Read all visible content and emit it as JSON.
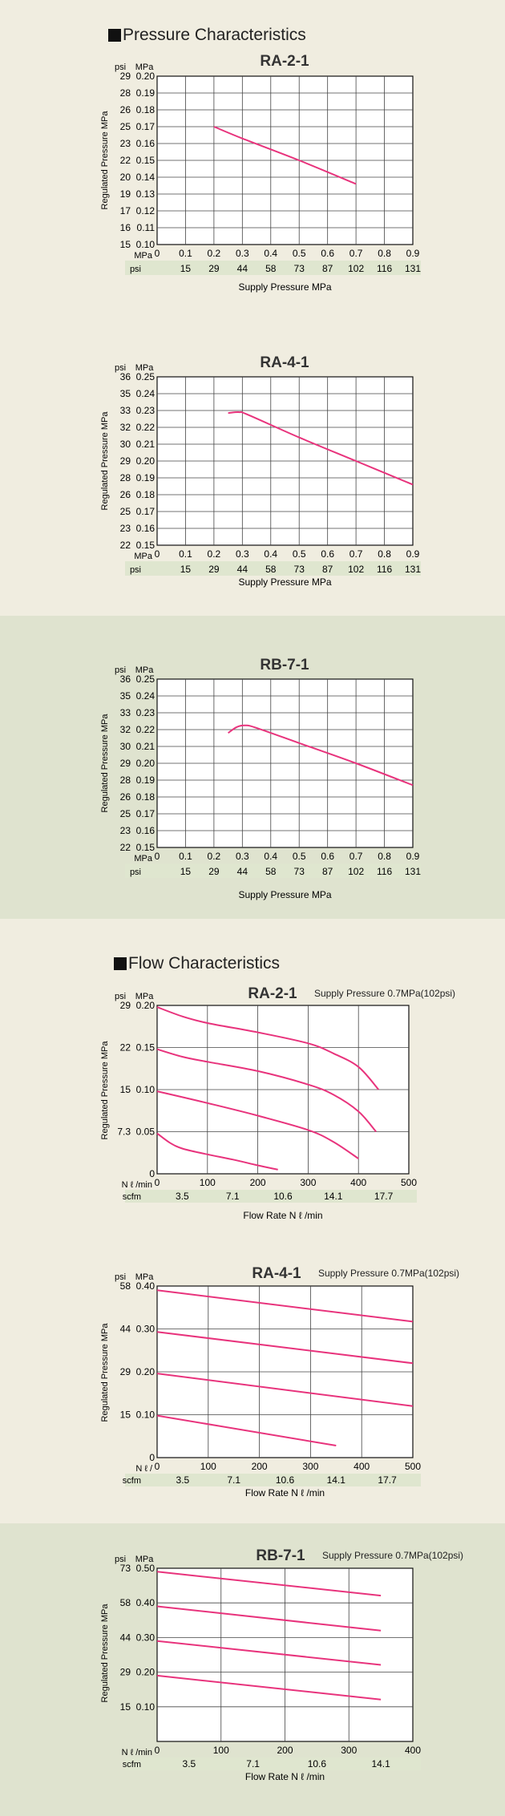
{
  "colors": {
    "background": "#f0ede0",
    "band": "#dfe3cf",
    "curve": "#e8337c",
    "unit_row": "#dfe6cf"
  },
  "sections": {
    "pressure_title": "Pressure Characteristics",
    "flow_title": "Flow Characteristics"
  },
  "chart_data": [
    {
      "type": "line",
      "title": "RA-2-1",
      "psi_label": "psi",
      "mpa_label": "MPa",
      "ylabel": "Regulated Pressure MPa",
      "xlabel": "Supply Pressure MPa",
      "y_mpa_ticks": [
        "0.20",
        "0.19",
        "0.18",
        "0.17",
        "0.16",
        "0.15",
        "0.14",
        "0.13",
        "0.12",
        "0.11",
        "0.10"
      ],
      "y_psi_ticks": [
        "29",
        "28",
        "26",
        "25",
        "23",
        "22",
        "20",
        "19",
        "17",
        "16",
        "15"
      ],
      "ylim": [
        0.1,
        0.2
      ],
      "x_unit_label": "MPa",
      "x_ticks": [
        "0",
        "0.1",
        "0.2",
        "0.3",
        "0.4",
        "0.5",
        "0.6",
        "0.7",
        "0.8",
        "0.9"
      ],
      "xlim": [
        0,
        0.9
      ],
      "sub_unit_label": "psi",
      "sub_ticks": [
        "15",
        "29",
        "44",
        "58",
        "73",
        "87",
        "102",
        "116",
        "131"
      ],
      "series": [
        {
          "x": [
            0.2,
            0.3,
            0.5,
            0.7
          ],
          "y": [
            0.17,
            0.163,
            0.15,
            0.136
          ]
        }
      ]
    },
    {
      "type": "line",
      "title": "RA-4-1",
      "psi_label": "psi",
      "mpa_label": "MPa",
      "ylabel": "Regulated Pressure MPa",
      "xlabel": "Supply Pressure MPa",
      "y_mpa_ticks": [
        "0.25",
        "0.24",
        "0.23",
        "0.22",
        "0.21",
        "0.20",
        "0.19",
        "0.18",
        "0.17",
        "0.16",
        "0.15"
      ],
      "y_psi_ticks": [
        "36",
        "35",
        "33",
        "32",
        "30",
        "29",
        "28",
        "26",
        "25",
        "23",
        "22"
      ],
      "ylim": [
        0.15,
        0.25
      ],
      "x_unit_label": "MPa",
      "x_ticks": [
        "0",
        "0.1",
        "0.2",
        "0.3",
        "0.4",
        "0.5",
        "0.6",
        "0.7",
        "0.8",
        "0.9"
      ],
      "xlim": [
        0,
        0.9
      ],
      "sub_unit_label": "psi",
      "sub_ticks": [
        "15",
        "29",
        "44",
        "58",
        "73",
        "87",
        "102",
        "116",
        "131"
      ],
      "series": [
        {
          "x": [
            0.25,
            0.29,
            0.32,
            0.5,
            0.7,
            0.9
          ],
          "y": [
            0.2285,
            0.229,
            0.2275,
            0.214,
            0.2,
            0.186
          ]
        }
      ]
    },
    {
      "type": "line",
      "title": "RB-7-1",
      "psi_label": "psi",
      "mpa_label": "MPa",
      "ylabel": "Regulated Pressure MPa",
      "xlabel": "Supply Pressure MPa",
      "y_mpa_ticks": [
        "0.25",
        "0.24",
        "0.23",
        "0.22",
        "0.21",
        "0.20",
        "0.19",
        "0.18",
        "0.17",
        "0.16",
        "0.15"
      ],
      "y_psi_ticks": [
        "36",
        "35",
        "33",
        "32",
        "30",
        "29",
        "28",
        "26",
        "25",
        "23",
        "22"
      ],
      "ylim": [
        0.15,
        0.25
      ],
      "x_unit_label": "MPa",
      "x_ticks": [
        "0",
        "0.1",
        "0.2",
        "0.3",
        "0.4",
        "0.5",
        "0.6",
        "0.7",
        "0.8",
        "0.9"
      ],
      "xlim": [
        0,
        0.9
      ],
      "sub_unit_label": "psi",
      "sub_ticks": [
        "15",
        "29",
        "44",
        "58",
        "73",
        "87",
        "102",
        "116",
        "131"
      ],
      "series": [
        {
          "x": [
            0.25,
            0.28,
            0.31,
            0.35,
            0.5,
            0.7,
            0.9
          ],
          "y": [
            0.218,
            0.2215,
            0.2225,
            0.221,
            0.212,
            0.2,
            0.187
          ]
        }
      ]
    },
    {
      "type": "line",
      "title": "RA-2-1",
      "annotation": "Supply Pressure 0.7MPa(102psi)",
      "psi_label": "psi",
      "mpa_label": "MPa",
      "ylabel": "Regulated Pressure MPa",
      "xlabel": "Flow  Rate N ℓ /min",
      "y_mpa_ticks": [
        "0.20",
        "0.15",
        "0.10",
        "0.05",
        "0"
      ],
      "y_psi_ticks": [
        "29",
        "22",
        "15",
        "7.3",
        ""
      ],
      "ylim": [
        0,
        0.2
      ],
      "x_unit_label": "N ℓ /min",
      "x_ticks": [
        "0",
        "100",
        "200",
        "300",
        "400",
        "500"
      ],
      "xlim": [
        0,
        500
      ],
      "sub_unit_label": "scfm",
      "sub_ticks": [
        "3.5",
        "7.1",
        "10.6",
        "14.1",
        "17.7"
      ],
      "series": [
        {
          "x": [
            0,
            50,
            100,
            200,
            300,
            350,
            400,
            440
          ],
          "y": [
            0.198,
            0.187,
            0.179,
            0.168,
            0.155,
            0.143,
            0.127,
            0.1
          ]
        },
        {
          "x": [
            0,
            50,
            100,
            200,
            300,
            350,
            400,
            435
          ],
          "y": [
            0.148,
            0.139,
            0.133,
            0.122,
            0.106,
            0.094,
            0.074,
            0.05
          ]
        },
        {
          "x": [
            0,
            100,
            200,
            300,
            350,
            400
          ],
          "y": [
            0.098,
            0.084,
            0.069,
            0.052,
            0.038,
            0.018
          ]
        },
        {
          "x": [
            0,
            25,
            50,
            100,
            150,
            200,
            240
          ],
          "y": [
            0.048,
            0.037,
            0.03,
            0.023,
            0.017,
            0.01,
            0.005
          ]
        }
      ]
    },
    {
      "type": "line",
      "title": "RA-4-1",
      "annotation": "Supply Pressure 0.7MPa(102psi)",
      "psi_label": "psi",
      "mpa_label": "MPa",
      "ylabel": "Regulated Pressure MPa",
      "xlabel": "Flow  Rate N ℓ /min",
      "y_mpa_ticks": [
        "0.40",
        "0.30",
        "0.20",
        "0.10",
        "0"
      ],
      "y_psi_ticks": [
        "58",
        "44",
        "29",
        "15",
        ""
      ],
      "ylim": [
        0,
        0.4
      ],
      "x_unit_label": "N ℓ /",
      "x_ticks": [
        "0",
        "100",
        "200",
        "300",
        "400",
        "500"
      ],
      "xlim": [
        0,
        500
      ],
      "sub_unit_label": "scfm",
      "sub_ticks": [
        "3.5",
        "7.1",
        "10.6",
        "14.1",
        "17.7"
      ],
      "series": [
        {
          "x": [
            0,
            500
          ],
          "y": [
            0.39,
            0.317
          ]
        },
        {
          "x": [
            0,
            500
          ],
          "y": [
            0.293,
            0.22
          ]
        },
        {
          "x": [
            0,
            500
          ],
          "y": [
            0.196,
            0.12
          ]
        },
        {
          "x": [
            0,
            350
          ],
          "y": [
            0.098,
            0.028
          ]
        }
      ]
    },
    {
      "type": "line",
      "title": "RB-7-1",
      "annotation": "Supply Pressure 0.7MPa(102psi)",
      "psi_label": "psi",
      "mpa_label": "MPa",
      "ylabel": "Regulated Pressure MPa",
      "xlabel": "Flow  Rate N ℓ /min",
      "y_mpa_ticks": [
        "0.50",
        "0.40",
        "0.30",
        "0.20",
        "0.10",
        ""
      ],
      "y_psi_ticks": [
        "73",
        "58",
        "44",
        "29",
        "15",
        ""
      ],
      "ylim": [
        0,
        0.5
      ],
      "x_unit_label": "N ℓ /min",
      "x_ticks": [
        "0",
        "100",
        "200",
        "300",
        "400"
      ],
      "xlim": [
        0,
        400
      ],
      "sub_unit_label": "scfm",
      "sub_ticks": [
        "3.5",
        "7.1",
        "10.6",
        "14.1"
      ],
      "series": [
        {
          "x": [
            0,
            350
          ],
          "y": [
            0.49,
            0.421
          ]
        },
        {
          "x": [
            0,
            350
          ],
          "y": [
            0.39,
            0.32
          ]
        },
        {
          "x": [
            0,
            350
          ],
          "y": [
            0.29,
            0.221
          ]
        },
        {
          "x": [
            0,
            350
          ],
          "y": [
            0.19,
            0.121
          ]
        }
      ]
    }
  ]
}
